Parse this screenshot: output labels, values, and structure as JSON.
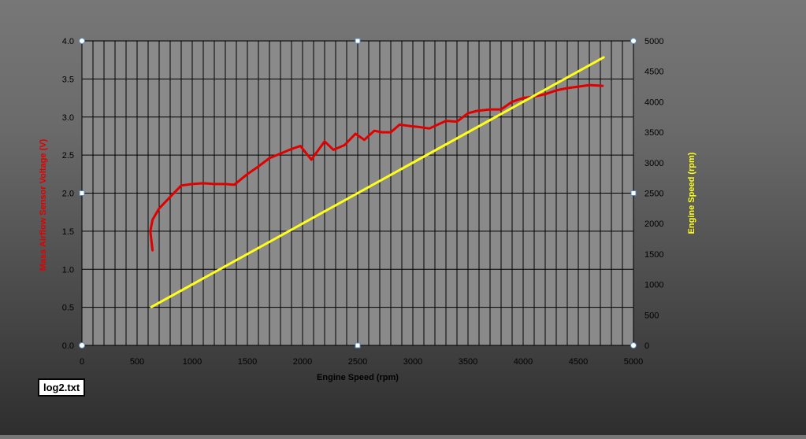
{
  "file_label": "log2.txt",
  "colors": {
    "mass_airflow": "#e00000",
    "engine_speed": "#ffff1a",
    "grid": "#000000",
    "plot_bg": "#8a8a8a",
    "tick_text": "#000000"
  },
  "chart_data": {
    "type": "line",
    "title": "",
    "xlabel": "Engine Speed (rpm)",
    "ylabel_left": "Mass Airflow Sensor Voltage (V)",
    "ylabel_right": "Engine Speed (rpm)",
    "xlim": [
      0,
      5000
    ],
    "ylim_left": [
      0,
      4.0
    ],
    "ylim_right": [
      0,
      5000
    ],
    "x_ticks": [
      "0",
      "500",
      "1000",
      "1500",
      "2000",
      "2500",
      "3000",
      "3500",
      "4000",
      "4500",
      "5000"
    ],
    "y_left_ticks": [
      "0.0",
      "0.5",
      "1.0",
      "1.5",
      "2.0",
      "2.5",
      "3.0",
      "3.5",
      "4.0"
    ],
    "y_right_ticks": [
      "0",
      "500",
      "1000",
      "1500",
      "2000",
      "2500",
      "3000",
      "3500",
      "4000",
      "4500",
      "5000"
    ],
    "grid": true,
    "series": [
      {
        "name": "Mass Airflow Sensor Voltage (V)",
        "axis": "left",
        "color": "#e00000",
        "x": [
          640,
          620,
          640,
          700,
          800,
          900,
          1000,
          1100,
          1200,
          1300,
          1380,
          1500,
          1600,
          1700,
          1800,
          1900,
          1980,
          2080,
          2200,
          2280,
          2380,
          2480,
          2560,
          2650,
          2720,
          2800,
          2880,
          2980,
          3050,
          3150,
          3300,
          3400,
          3500,
          3580,
          3700,
          3800,
          3900,
          4000,
          4100,
          4200,
          4300,
          4400,
          4500,
          4600,
          4720
        ],
        "y": [
          1.25,
          1.5,
          1.65,
          1.8,
          1.95,
          2.1,
          2.12,
          2.13,
          2.12,
          2.12,
          2.11,
          2.25,
          2.35,
          2.46,
          2.52,
          2.58,
          2.62,
          2.44,
          2.68,
          2.57,
          2.63,
          2.78,
          2.7,
          2.82,
          2.8,
          2.8,
          2.9,
          2.88,
          2.87,
          2.85,
          2.95,
          2.94,
          3.05,
          3.08,
          3.1,
          3.1,
          3.2,
          3.25,
          3.27,
          3.3,
          3.35,
          3.38,
          3.4,
          3.42,
          3.41
        ]
      },
      {
        "name": "Engine Speed (rpm)",
        "axis": "right",
        "color": "#ffff1a",
        "x": [
          630,
          4730
        ],
        "y": [
          630,
          4730
        ]
      }
    ]
  }
}
